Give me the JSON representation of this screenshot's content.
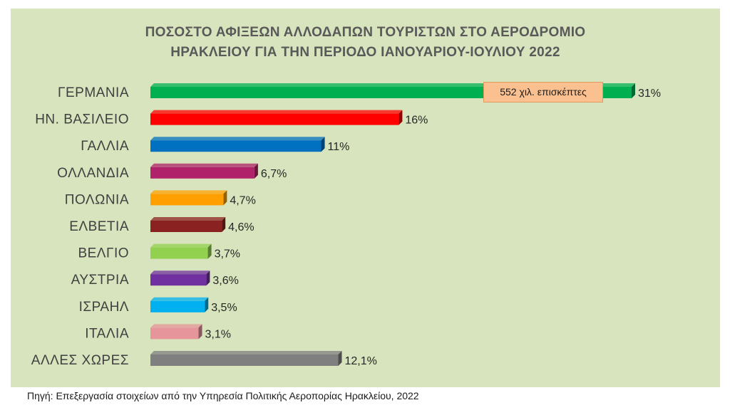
{
  "chart_data": {
    "type": "bar",
    "orientation": "horizontal",
    "title_lines": [
      "ΠΟΣΟΣΤΟ ΑΦΙΞΕΩΝ ΑΛΛΟΔΑΠΩΝ ΤΟΥΡΙΣΤΩΝ  ΣΤΟ ΑΕΡΟΔΡΟΜΙΟ",
      "ΗΡΑΚΛΕΙΟΥ ΓΙΑ ΤΗΝ ΠΕΡΙΟΔΟ ΙΑΝΟΥΑΡΙΟΥ-ΙΟΥΛΙΟΥ 2022"
    ],
    "categories": [
      "ΓΕΡΜΑΝΙΑ",
      "ΗΝ. ΒΑΣΙΛΕΙΟ",
      "ΓΑΛΛΙΑ",
      "ΟΛΛΑΝΔΙΑ",
      "ΠΟΛΩΝΙΑ",
      "ΕΛΒΕΤΙΑ",
      "ΒΕΛΓΙΟ",
      "ΑΥΣΤΡΙΑ",
      "ΙΣΡΑΗΛ",
      "ΙΤΑΛΙΑ",
      "ΑΛΛΕΣ ΧΩΡΕΣ"
    ],
    "values": [
      31,
      16,
      11,
      6.7,
      4.7,
      4.6,
      3.7,
      3.6,
      3.5,
      3.1,
      12.1
    ],
    "value_labels": [
      "31%",
      "16%",
      "11%",
      "6,7%",
      "4,7%",
      "4,6%",
      "3,7%",
      "3,6%",
      "3,5%",
      "3,1%",
      "12,1%"
    ],
    "colors": [
      "#00b050",
      "#ff0000",
      "#0070c0",
      "#b0226a",
      "#ffa000",
      "#8b2222",
      "#92d050",
      "#7030a0",
      "#00b0f0",
      "#e6959b",
      "#7f7f7f"
    ],
    "annotation": "552 χιλ. επισκέπτες",
    "xlim": [
      0,
      31
    ],
    "grid": false,
    "legend": "none"
  },
  "footer": {
    "source": "Πηγή: Επεξεργασία στοιχείων από την Υπηρεσία Πολιτικής Αεροπορίας Ηρακλείου, 2022"
  }
}
